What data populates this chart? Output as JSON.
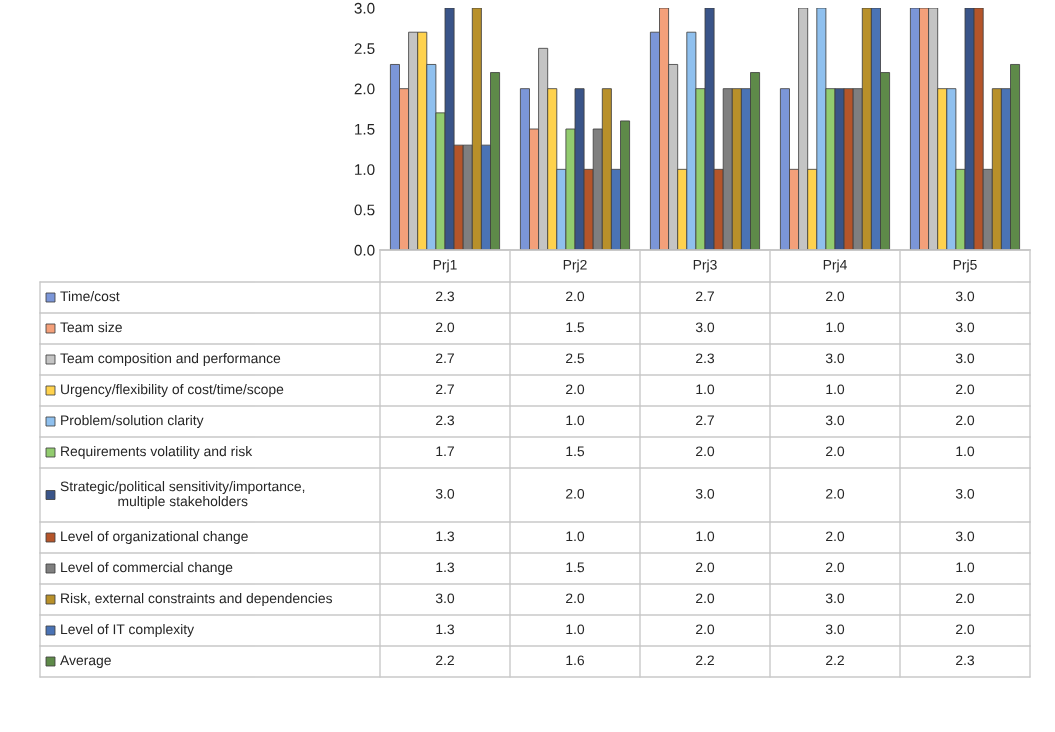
{
  "chart_data": {
    "type": "bar",
    "categories": [
      "Prj1",
      "Prj2",
      "Prj3",
      "Prj4",
      "Prj5"
    ],
    "series": [
      {
        "name": "Time/cost",
        "color": "#7b96d8",
        "values": [
          2.3,
          2.0,
          2.7,
          2.0,
          3.0
        ],
        "value_labels": [
          "2.3",
          "2.0",
          "2.7",
          "2.0",
          "3.0"
        ]
      },
      {
        "name": "Team size",
        "color": "#f4a07a",
        "values": [
          2.0,
          1.5,
          3.0,
          1.0,
          3.0
        ],
        "value_labels": [
          "2.0",
          "1.5",
          "3.0",
          "1.0",
          "3.0"
        ]
      },
      {
        "name": "Team composition and performance",
        "color": "#c4c4c4",
        "values": [
          2.7,
          2.5,
          2.3,
          3.0,
          3.0
        ],
        "value_labels": [
          "2.7",
          "2.5",
          "2.3",
          "3.0",
          "3.0"
        ]
      },
      {
        "name": "Urgency/flexibility of cost/time/scope",
        "color": "#ffd24d",
        "values": [
          2.7,
          2.0,
          1.0,
          1.0,
          2.0
        ],
        "value_labels": [
          "2.7",
          "2.0",
          "1.0",
          "1.0",
          "2.0"
        ]
      },
      {
        "name": "Problem/solution clarity",
        "color": "#8fc0ee",
        "values": [
          2.3,
          1.0,
          2.7,
          3.0,
          2.0
        ],
        "value_labels": [
          "2.3",
          "1.0",
          "2.7",
          "3.0",
          "2.0"
        ]
      },
      {
        "name": "Requirements volatility and risk",
        "color": "#92cc6f",
        "values": [
          1.7,
          1.5,
          2.0,
          2.0,
          1.0
        ],
        "value_labels": [
          "1.7",
          "1.5",
          "2.0",
          "2.0",
          "1.0"
        ]
      },
      {
        "name": "Strategic/political sensitivity/importance, multiple stakeholders",
        "color": "#3a5488",
        "values": [
          3.0,
          2.0,
          3.0,
          2.0,
          3.0
        ],
        "value_labels": [
          "3.0",
          "2.0",
          "3.0",
          "2.0",
          "3.0"
        ]
      },
      {
        "name": "Level of organizational change",
        "color": "#b5552a",
        "values": [
          1.3,
          1.0,
          1.0,
          2.0,
          3.0
        ],
        "value_labels": [
          "1.3",
          "1.0",
          "1.0",
          "2.0",
          "3.0"
        ]
      },
      {
        "name": "Level of commercial change",
        "color": "#7f7f7f",
        "values": [
          1.3,
          1.5,
          2.0,
          2.0,
          1.0
        ],
        "value_labels": [
          "1.3",
          "1.5",
          "2.0",
          "2.0",
          "1.0"
        ]
      },
      {
        "name": "Risk, external constraints and dependencies",
        "color": "#b8902a",
        "values": [
          3.0,
          2.0,
          2.0,
          3.0,
          2.0
        ],
        "value_labels": [
          "3.0",
          "2.0",
          "2.0",
          "3.0",
          "2.0"
        ]
      },
      {
        "name": "Level of IT complexity",
        "color": "#4a73b5",
        "values": [
          1.3,
          1.0,
          2.0,
          3.0,
          2.0
        ],
        "value_labels": [
          "1.3",
          "1.0",
          "2.0",
          "3.0",
          "2.0"
        ]
      },
      {
        "name": "Average",
        "color": "#5e8a49",
        "values": [
          2.2,
          1.6,
          2.2,
          2.2,
          2.3
        ],
        "value_labels": [
          "2.2",
          "1.6",
          "2.2",
          "2.2",
          "2.3"
        ]
      }
    ],
    "ylim": [
      0,
      3.0
    ],
    "yticks": [
      {
        "value": 0,
        "label": "0.0"
      },
      {
        "value": 0.5,
        "label": "0.5"
      },
      {
        "value": 1.0,
        "label": "1.0"
      },
      {
        "value": 1.5,
        "label": "1.5"
      },
      {
        "value": 2.0,
        "label": "2.0"
      },
      {
        "value": 2.5,
        "label": "2.5"
      },
      {
        "value": 3.0,
        "label": "3.0"
      }
    ],
    "grid": false,
    "legend": "bottom"
  }
}
